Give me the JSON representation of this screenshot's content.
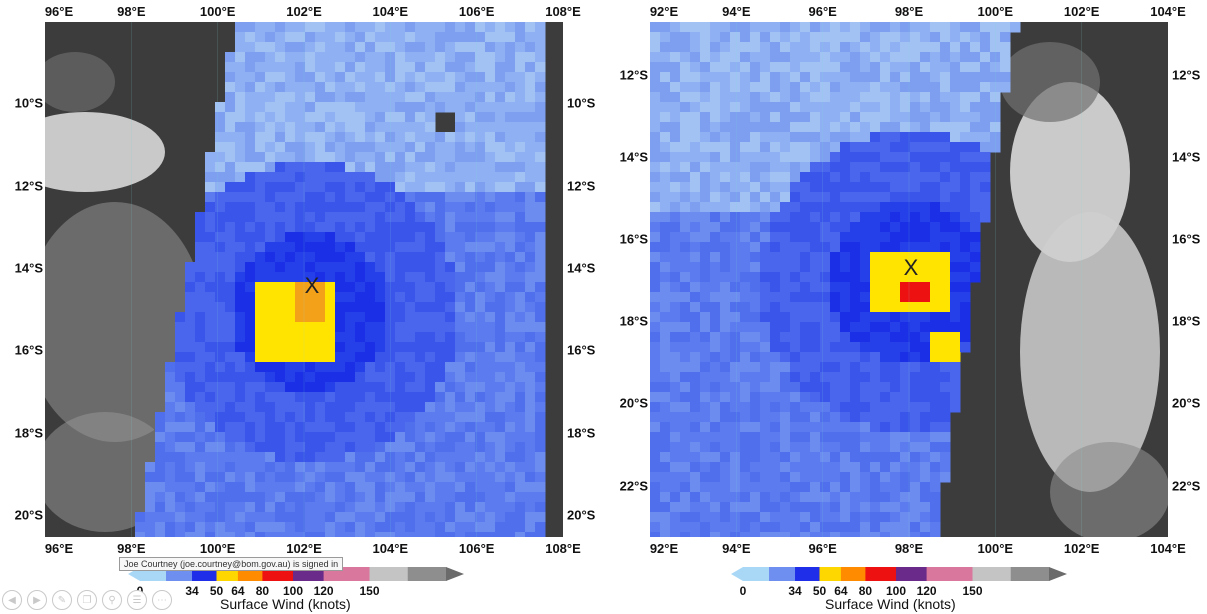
{
  "left_map": {
    "lon_labels": [
      "96°E",
      "98°E",
      "100°E",
      "102°E",
      "104°E",
      "106°E",
      "108°E"
    ],
    "lat_labels": [
      "10°S",
      "12°S",
      "14°S",
      "16°S",
      "18°S",
      "20°S"
    ],
    "center_marker": "X",
    "colorbar": {
      "ticks": [
        "0",
        "34",
        "50",
        "64",
        "80",
        "100",
        "120",
        "150"
      ],
      "title": "Surface Wind (knots)"
    }
  },
  "right_map": {
    "lon_labels": [
      "92°E",
      "94°E",
      "96°E",
      "98°E",
      "100°E",
      "102°E",
      "104°E"
    ],
    "lat_labels": [
      "12°S",
      "14°S",
      "16°S",
      "18°S",
      "20°S",
      "22°S"
    ],
    "center_marker": "X",
    "colorbar": {
      "ticks": [
        "0",
        "34",
        "50",
        "64",
        "80",
        "100",
        "120",
        "150"
      ],
      "title": "Surface Wind (knots)"
    }
  },
  "colorbar_colors": [
    "#a9d8f7",
    "#6f8ff0",
    "#1f2ee8",
    "#ffd700",
    "#ff8c00",
    "#ee1111",
    "#6a2a8a",
    "#d9779c",
    "#c4c4c4",
    "#8e8e8e",
    "#6b6b6b"
  ],
  "overlay": {
    "signin_tooltip": "Joe Courtney (joe.courtney@bom.gov.au) is signed in",
    "toolbar_icons": [
      "back-icon",
      "forward-icon",
      "pen-icon",
      "copy-icon",
      "zoom-icon",
      "menu-icon",
      "more-icon"
    ]
  }
}
